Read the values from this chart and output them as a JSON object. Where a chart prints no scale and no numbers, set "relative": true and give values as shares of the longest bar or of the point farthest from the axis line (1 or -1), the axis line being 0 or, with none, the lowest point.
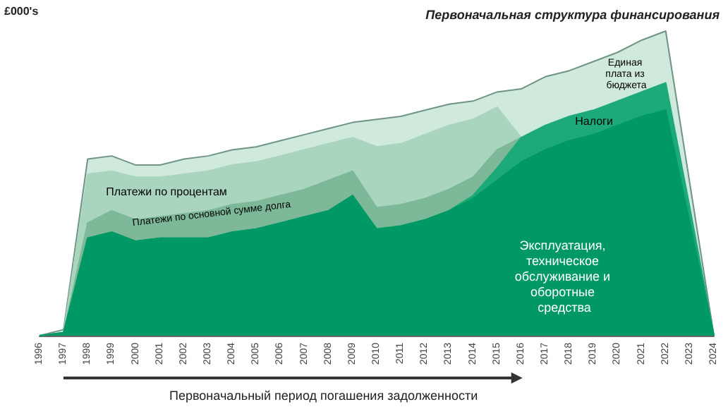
{
  "chart_data": {
    "type": "area",
    "title": "Первоначальная структура финансирования",
    "ylabel": "£000's",
    "relative": true,
    "stacked": true,
    "legend": false,
    "categories": [
      "1996",
      "1997",
      "1998",
      "1999",
      "2000",
      "2001",
      "2002",
      "2003",
      "2004",
      "2005",
      "2006",
      "2007",
      "2008",
      "2009",
      "2010",
      "2011",
      "2012",
      "2013",
      "2014",
      "2015",
      "2016",
      "2017",
      "2018",
      "2019",
      "2020",
      "2021",
      "2022",
      "2023",
      "2024"
    ],
    "series": [
      {
        "name": "Эксплуатация, техническое обслуживание и оборотные средства",
        "color": "#009966",
        "values": [
          0,
          0.01,
          0.32,
          0.34,
          0.31,
          0.32,
          0.32,
          0.32,
          0.34,
          0.35,
          0.37,
          0.39,
          0.41,
          0.46,
          0.35,
          0.36,
          0.38,
          0.41,
          0.45,
          0.51,
          0.57,
          0.61,
          0.64,
          0.66,
          0.69,
          0.72,
          0.74,
          0.37,
          0
        ]
      },
      {
        "name": "Налоги",
        "color": "#1daa7a",
        "values": [
          0,
          0,
          0,
          0,
          0,
          0,
          0,
          0,
          0,
          0,
          0,
          0,
          0,
          0,
          0,
          0,
          0,
          0,
          0.01,
          0.04,
          0.08,
          0.08,
          0.08,
          0.08,
          0.08,
          0.08,
          0.09,
          0.05,
          0
        ]
      },
      {
        "name": "Платежи по основной сумме долга",
        "color": "#7db898",
        "values": [
          0,
          0,
          0.05,
          0.07,
          0.07,
          0.07,
          0.08,
          0.09,
          0.09,
          0.09,
          0.09,
          0.09,
          0.1,
          0.08,
          0.07,
          0.07,
          0.07,
          0.07,
          0.06,
          0.06,
          0,
          null,
          null,
          null,
          null,
          null,
          null,
          null,
          null
        ]
      },
      {
        "name": "Платежи по процентам",
        "color": "#a9d5bf",
        "values": [
          0,
          0,
          0.16,
          0.13,
          0.14,
          0.13,
          0.13,
          0.13,
          0.13,
          0.13,
          0.13,
          0.13,
          0.12,
          0.11,
          0.2,
          0.2,
          0.21,
          0.21,
          0.19,
          0.14,
          0,
          null,
          null,
          null,
          null,
          null,
          null,
          null,
          null
        ]
      },
      {
        "name": "Единая плата из бюджета",
        "color": "#cfe9dc",
        "values": [
          0,
          0.01,
          0.05,
          0.05,
          0.04,
          0.04,
          0.05,
          0.05,
          0.05,
          0.05,
          0.05,
          0.05,
          0.05,
          0.05,
          0.09,
          0.09,
          0.08,
          0.07,
          0.06,
          0.05,
          0.16,
          0.16,
          0.15,
          0.16,
          0.16,
          0.17,
          0.17,
          0.08,
          0
        ]
      }
    ],
    "annotations": [
      "Первоначальный период погашения задолженности"
    ]
  }
}
